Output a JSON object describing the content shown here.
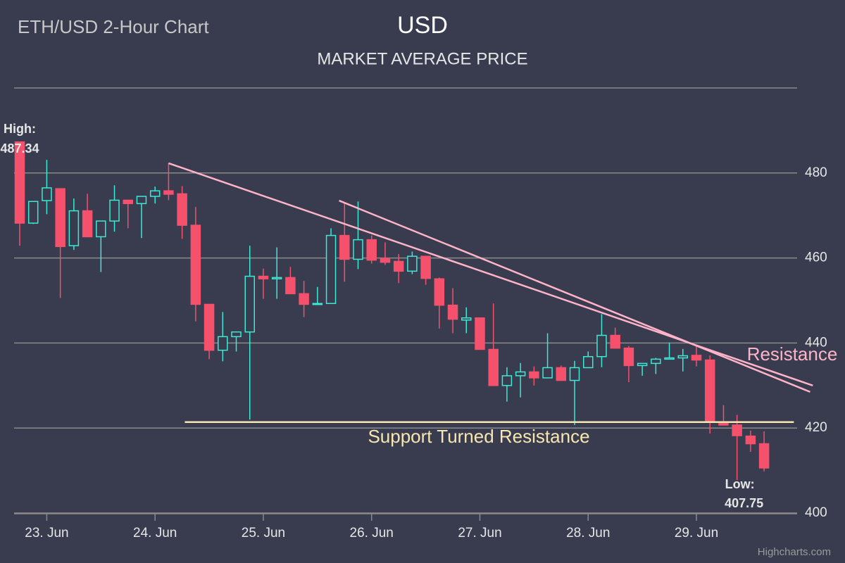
{
  "chart_data": {
    "type": "candlestick",
    "title": "ETH/USD 2-Hour Chart",
    "subtitle": "USD",
    "subtitle2": "MARKET AVERAGE PRICE",
    "credits": "Highcharts.com",
    "categories": [
      null,
      null,
      "23. Jun",
      null,
      null,
      null,
      null,
      null,
      null,
      null,
      "24. Jun",
      null,
      null,
      null,
      null,
      null,
      null,
      null,
      "25. Jun",
      null,
      null,
      null,
      null,
      null,
      null,
      null,
      "26. Jun",
      null,
      null,
      null,
      null,
      null,
      null,
      null,
      "27. Jun",
      null,
      null,
      null,
      null,
      null,
      null,
      null,
      "28. Jun",
      null,
      null,
      null,
      null,
      null,
      null,
      null,
      "29. Jun",
      null,
      null,
      null,
      null,
      null
    ],
    "open": [
      487.3,
      468.2,
      473.5,
      476.3,
      462.9,
      471.1,
      465,
      468.7,
      473.6,
      472.8,
      474.5,
      475.8,
      475.1,
      467.7,
      449.1,
      438.3,
      441.5,
      442.6,
      455.7,
      455.1,
      455.4,
      451.6,
      449.1,
      449.3,
      465.3,
      459.7,
      464.3,
      459.9,
      459.2,
      456.9,
      460.4,
      455.1,
      448.9,
      445.4,
      445.9,
      438.5,
      430,
      432.3,
      433.2,
      431.8,
      434.2,
      431.2,
      434.2,
      436.8,
      441.8,
      438.8,
      434.7,
      435.2,
      436.2,
      436.5,
      437.1,
      436,
      421.4,
      420.7,
      418.1,
      416.3
    ],
    "high": [
      487.34,
      473.3,
      483.1,
      476.3,
      474,
      475.1,
      468.7,
      477.1,
      473.6,
      474.5,
      476.8,
      482.3,
      476.9,
      472,
      449.1,
      447.3,
      442.6,
      462.9,
      457.5,
      462.5,
      457.9,
      454.6,
      453.2,
      467,
      472.8,
      473.3,
      465.3,
      463.7,
      460.9,
      461.5,
      460.4,
      455.4,
      452.9,
      448.4,
      445.9,
      449.3,
      434.3,
      435.3,
      434.5,
      442.3,
      434.7,
      435.8,
      438,
      446.8,
      443.6,
      439.3,
      435.2,
      436.5,
      440.1,
      438.6,
      439.5,
      437.1,
      425.4,
      423.1,
      419.4,
      419.2
    ],
    "low": [
      462.9,
      468,
      470.3,
      450.6,
      461.9,
      465,
      456.7,
      466.2,
      467,
      464.7,
      472.8,
      473.6,
      464.5,
      445.1,
      436.2,
      435.7,
      438,
      422,
      450.4,
      450.4,
      451.6,
      446.1,
      449,
      449.3,
      454.4,
      457.4,
      458.7,
      458.4,
      454.1,
      456.2,
      453.7,
      443.4,
      442.3,
      442.3,
      438.5,
      430,
      426.2,
      427.2,
      430,
      431.8,
      431.2,
      420.7,
      434.2,
      434.3,
      438.8,
      430.8,
      432.3,
      432.7,
      436.2,
      433.3,
      434.5,
      418.7,
      420.7,
      407.75,
      414.4,
      409.8
    ],
    "close": [
      468.2,
      473.3,
      476.5,
      462.7,
      471.1,
      465,
      468.7,
      473.6,
      472.8,
      474.5,
      475.8,
      475,
      467.7,
      449.1,
      438.3,
      441.5,
      442.6,
      455.7,
      455.1,
      455.4,
      451.6,
      449.1,
      449.3,
      465.3,
      459.7,
      464.3,
      459.5,
      459,
      456.9,
      460.4,
      455.2,
      448.9,
      445.6,
      445.9,
      438.5,
      430,
      432.3,
      433.2,
      431.8,
      434.2,
      431.2,
      434.2,
      436.8,
      441.8,
      438.8,
      434.7,
      435.2,
      436.2,
      436.5,
      437,
      436,
      421.4,
      420.7,
      418.2,
      416.3,
      410.6
    ],
    "up_color": "#3ee8d5",
    "down_color": "#f5506c",
    "ylim": [
      400,
      500
    ],
    "yticks": [
      400,
      420,
      440,
      460,
      480
    ],
    "grid": true,
    "high_label": "High:",
    "low_label": "Low:",
    "lines": [
      {
        "color": "#ffb3c8",
        "x": [
          11,
          58.6
        ],
        "y": [
          482.3,
          430
        ]
      },
      {
        "color": "#ffb3c8",
        "x": [
          23.6,
          58.4
        ],
        "y": [
          473.5,
          428.5
        ]
      },
      {
        "color": "#f7e6b0",
        "x": [
          12.2,
          57.2
        ],
        "y": [
          421.4,
          421.4
        ]
      }
    ],
    "annotations": [
      {
        "text": "Resistance",
        "color": "#ffb3c8"
      },
      {
        "text": "Support Turned Resistance",
        "color": "#f7e6b0"
      }
    ]
  }
}
